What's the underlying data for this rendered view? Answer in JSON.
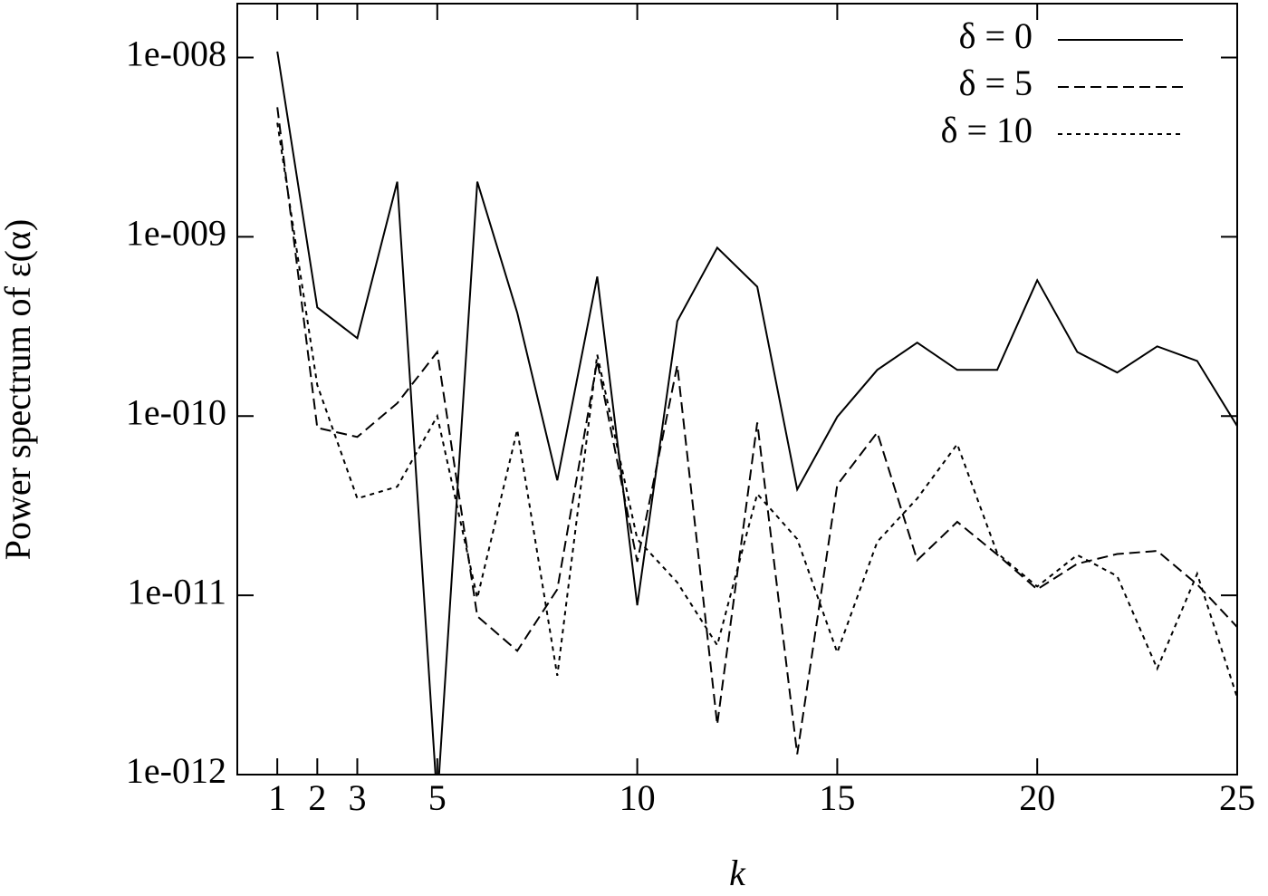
{
  "chart_data": {
    "type": "line",
    "xlabel": "k",
    "ylabel": "Power spectrum of ε(α)",
    "x": [
      1,
      2,
      3,
      4,
      5,
      6,
      7,
      8,
      9,
      10,
      11,
      12,
      13,
      14,
      15,
      16,
      17,
      18,
      19,
      20,
      21,
      22,
      23,
      24,
      25
    ],
    "series": [
      {
        "name": "δ = 0",
        "color": "#000000",
        "dash": "solid",
        "values": [
          1.08e-08,
          4.04e-10,
          2.72e-10,
          2.03e-09,
          7e-13,
          2.03e-09,
          3.77e-10,
          4.38e-11,
          6e-10,
          8.8e-12,
          3.39e-10,
          8.7e-10,
          5.27e-10,
          3.9e-11,
          9.9e-11,
          1.81e-10,
          2.57e-10,
          1.81e-10,
          1.81e-10,
          5.73e-10,
          2.28e-10,
          1.75e-10,
          2.45e-10,
          2.03e-10,
          8.8e-11
        ]
      },
      {
        "name": "δ = 5",
        "color": "#000000",
        "dash": "dashed",
        "values": [
          5.28e-09,
          8.6e-11,
          7.65e-11,
          1.18e-10,
          2.28e-10,
          7.65e-12,
          4.9e-12,
          1.08e-11,
          2.03e-10,
          1.54e-11,
          1.92e-10,
          1.9e-12,
          9.2e-11,
          1.3e-12,
          4.13e-11,
          8.1e-11,
          1.57e-11,
          2.57e-11,
          1.69e-11,
          1.08e-11,
          1.5e-11,
          1.7e-11,
          1.77e-11,
          1.15e-11,
          6.65e-12
        ]
      },
      {
        "name": "δ = 10",
        "color": "#000000",
        "dash": "dotted",
        "values": [
          4.33e-09,
          1.49e-10,
          3.47e-11,
          4.04e-11,
          1e-10,
          9.66e-12,
          8.4e-11,
          3.56e-12,
          2.2e-10,
          2.06e-11,
          1.18e-11,
          5.27e-12,
          3.68e-11,
          2.06e-11,
          4.8e-12,
          1.99e-11,
          3.47e-11,
          6.97e-11,
          1.72e-11,
          1.12e-11,
          1.68e-11,
          1.28e-11,
          3.9e-12,
          1.32e-11,
          2.69e-12
        ]
      }
    ],
    "xlim": [
      0,
      25
    ],
    "xticks": [
      1,
      2,
      3,
      5,
      10,
      15,
      20,
      25
    ],
    "ylim": [
      1e-12,
      2e-08
    ],
    "log_y": true,
    "yticks": [
      {
        "value": 1e-12,
        "label": "1e-012"
      },
      {
        "value": 1e-11,
        "label": "1e-011"
      },
      {
        "value": 1e-10,
        "label": "1e-010"
      },
      {
        "value": 1e-09,
        "label": "1e-009"
      },
      {
        "value": 1e-08,
        "label": "1e-008"
      }
    ],
    "legend": "top-right"
  }
}
